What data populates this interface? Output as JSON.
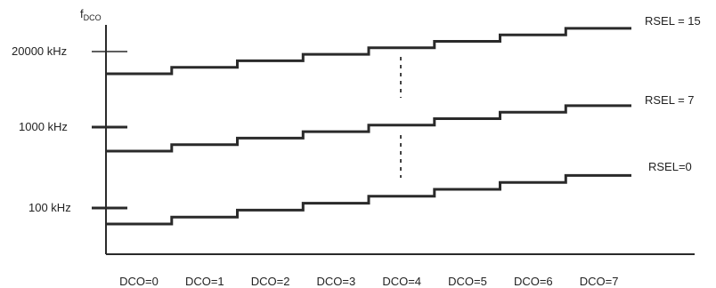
{
  "chart_data": {
    "type": "line",
    "y_axis_label": {
      "main": "f",
      "subscript": "DCO"
    },
    "y_ticks": [
      "20000 kHz",
      "1000 kHz",
      "100 kHz"
    ],
    "categories": [
      "DCO=0",
      "DCO=1",
      "DCO=2",
      "DCO=3",
      "DCO=4",
      "DCO=5",
      "DCO=6",
      "DCO=7"
    ],
    "series": [
      {
        "name": "RSEL = 15",
        "relative_level": [
          0,
          1,
          2,
          3,
          4,
          5,
          6,
          7
        ]
      },
      {
        "name": "RSEL = 7",
        "relative_level": [
          0,
          1,
          2,
          3,
          4,
          5,
          6,
          7
        ]
      },
      {
        "name": "RSEL=0",
        "relative_level": [
          0,
          1,
          2,
          3,
          4,
          5,
          6,
          7
        ]
      }
    ],
    "ellipsis_between_series": true,
    "color": "#2a2a2a"
  }
}
